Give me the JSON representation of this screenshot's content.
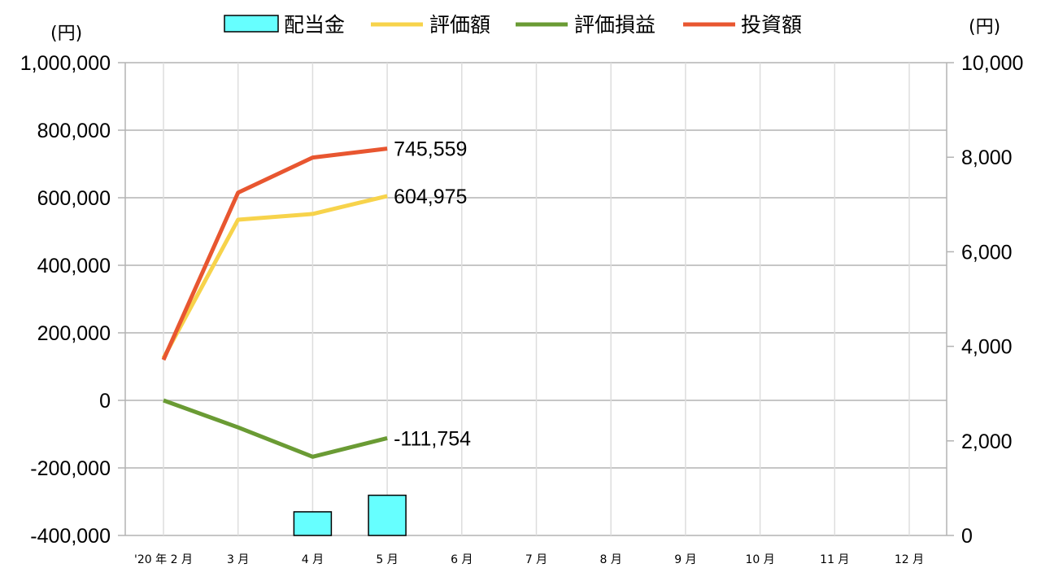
{
  "chart_data": {
    "type": "line",
    "categories": [
      "'20 年 2 月",
      "3 月",
      "4 月",
      "5 月",
      "6 月",
      "7 月",
      "8 月",
      "9 月",
      "10 月",
      "11 月",
      "12 月"
    ],
    "series": [
      {
        "name": "配当金",
        "type": "bar",
        "axis": "right",
        "color": "#66ffff",
        "values": [
          null,
          null,
          500,
          850,
          null,
          null,
          null,
          null,
          null,
          null,
          null
        ]
      },
      {
        "name": "評価額",
        "type": "line",
        "axis": "left",
        "color": "#f7d34b",
        "values": [
          125000,
          535000,
          552000,
          604975,
          null,
          null,
          null,
          null,
          null,
          null,
          null
        ],
        "end_label": "604,975"
      },
      {
        "name": "評価損益",
        "type": "line",
        "axis": "left",
        "color": "#6a9b34",
        "values": [
          0,
          -80000,
          -167000,
          -111754,
          null,
          null,
          null,
          null,
          null,
          null,
          null
        ],
        "end_label": "-111,754"
      },
      {
        "name": "投資額",
        "type": "line",
        "axis": "left",
        "color": "#e85630",
        "values": [
          120000,
          615000,
          719000,
          745559,
          null,
          null,
          null,
          null,
          null,
          null,
          null
        ],
        "end_label": "745,559"
      }
    ],
    "left_axis": {
      "unit": "(円)",
      "min": -400000,
      "max": 1000000,
      "step": 200000,
      "tick_labels": [
        "-400,000",
        "-200,000",
        "0",
        "200,000",
        "400,000",
        "600,000",
        "800,000",
        "1,000,000"
      ]
    },
    "right_axis": {
      "unit": "(円)",
      "min": 0,
      "max": 10000,
      "step": 2000,
      "tick_labels": [
        "0",
        "2,000",
        "4,000",
        "6,000",
        "8,000",
        "10,000"
      ]
    },
    "grid": true,
    "legend_position": "top"
  }
}
